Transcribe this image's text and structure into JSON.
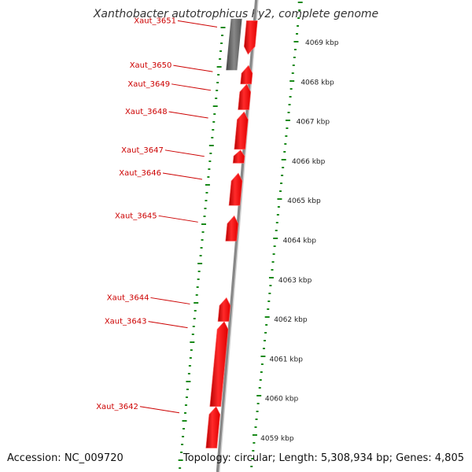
{
  "title": "Xanthobacter autotrophicus Py2, complete genome",
  "footer": {
    "accession": "Accession: NC_009720",
    "topology": "Topology: circular; Length: 5,308,934 bp; Genes: 4,805"
  },
  "colors": {
    "gene": "#ff0000",
    "gene_label": "#cc0000",
    "pseudo_gene": "#666666",
    "tick": "#1a8a1a",
    "backbone": "#888888",
    "kbp_label": "#222222"
  },
  "ruler": [
    {
      "kbp": 4069,
      "label": "4069 kbp"
    },
    {
      "kbp": 4068,
      "label": "4068 kbp"
    },
    {
      "kbp": 4067,
      "label": "4067 kbp"
    },
    {
      "kbp": 4066,
      "label": "4066 kbp"
    },
    {
      "kbp": 4065,
      "label": "4065 kbp"
    },
    {
      "kbp": 4064,
      "label": "4064 kbp"
    },
    {
      "kbp": 4063,
      "label": "4063 kbp"
    },
    {
      "kbp": 4062,
      "label": "4062 kbp"
    },
    {
      "kbp": 4061,
      "label": "4061 kbp"
    },
    {
      "kbp": 4060,
      "label": "4060 kbp"
    },
    {
      "kbp": 4059,
      "label": "4059 kbp"
    }
  ],
  "genes": [
    {
      "name": "Xaut_3651",
      "start_kbp": 4068.7,
      "end_kbp": 4069.55,
      "strand": "reverse"
    },
    {
      "name": "Xaut_3650",
      "start_kbp": 4067.95,
      "end_kbp": 4068.42,
      "strand": "forward"
    },
    {
      "name": "Xaut_3649",
      "start_kbp": 4067.3,
      "end_kbp": 4067.95,
      "strand": "forward"
    },
    {
      "name": "Xaut_3648",
      "start_kbp": 4066.3,
      "end_kbp": 4067.25,
      "strand": "forward"
    },
    {
      "name": "Xaut_3647",
      "start_kbp": 4065.95,
      "end_kbp": 4066.28,
      "strand": "forward"
    },
    {
      "name": "Xaut_3646",
      "start_kbp": 4064.88,
      "end_kbp": 4065.7,
      "strand": "forward"
    },
    {
      "name": "Xaut_3645",
      "start_kbp": 4063.98,
      "end_kbp": 4064.62,
      "strand": "forward"
    },
    {
      "name": "Xaut_3644",
      "start_kbp": 4061.95,
      "end_kbp": 4062.55,
      "strand": "forward"
    },
    {
      "name": "Xaut_3643",
      "start_kbp": 4059.8,
      "end_kbp": 4061.95,
      "strand": "forward"
    },
    {
      "name": "Xaut_3642",
      "start_kbp": 4058.75,
      "end_kbp": 4059.8,
      "strand": "forward"
    }
  ],
  "pseudo_segment": {
    "start_kbp": 4068.3,
    "end_kbp": 4069.6
  }
}
